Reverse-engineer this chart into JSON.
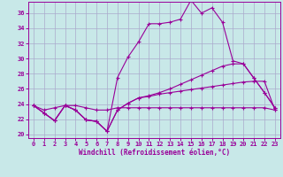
{
  "xlabel": "Windchill (Refroidissement éolien,°C)",
  "background_color": "#c8e8e8",
  "grid_color": "#aaaacc",
  "line_color": "#990099",
  "xlim": [
    -0.5,
    23.5
  ],
  "ylim": [
    19.5,
    37.5
  ],
  "xticks": [
    0,
    1,
    2,
    3,
    4,
    5,
    6,
    7,
    8,
    9,
    10,
    11,
    12,
    13,
    14,
    15,
    16,
    17,
    18,
    19,
    20,
    21,
    22,
    23
  ],
  "yticks": [
    20,
    22,
    24,
    26,
    28,
    30,
    32,
    34,
    36
  ],
  "series1": [
    23.8,
    22.8,
    21.8,
    23.8,
    23.2,
    21.9,
    21.7,
    20.4,
    23.2,
    24.1,
    24.8,
    25.0,
    25.3,
    25.5,
    25.7,
    25.9,
    26.1,
    26.3,
    26.5,
    26.7,
    26.9,
    27.0,
    27.0,
    23.2
  ],
  "series2": [
    23.8,
    22.8,
    21.8,
    23.8,
    23.2,
    21.9,
    21.7,
    20.4,
    23.2,
    24.1,
    24.8,
    25.1,
    25.5,
    26.0,
    26.6,
    27.2,
    27.8,
    28.4,
    29.0,
    29.3,
    29.3,
    27.4,
    25.5,
    23.5
  ],
  "series3": [
    23.8,
    22.8,
    21.8,
    23.8,
    23.2,
    21.9,
    21.7,
    20.4,
    27.5,
    30.2,
    32.2,
    34.6,
    34.6,
    34.8,
    35.2,
    37.7,
    36.0,
    36.7,
    34.8,
    29.7,
    29.3,
    27.4,
    25.5,
    23.5
  ],
  "series4": [
    23.8,
    23.2,
    23.5,
    23.8,
    23.8,
    23.5,
    23.2,
    23.2,
    23.5,
    23.5,
    23.5,
    23.5,
    23.5,
    23.5,
    23.5,
    23.5,
    23.5,
    23.5,
    23.5,
    23.5,
    23.5,
    23.5,
    23.5,
    23.2
  ]
}
